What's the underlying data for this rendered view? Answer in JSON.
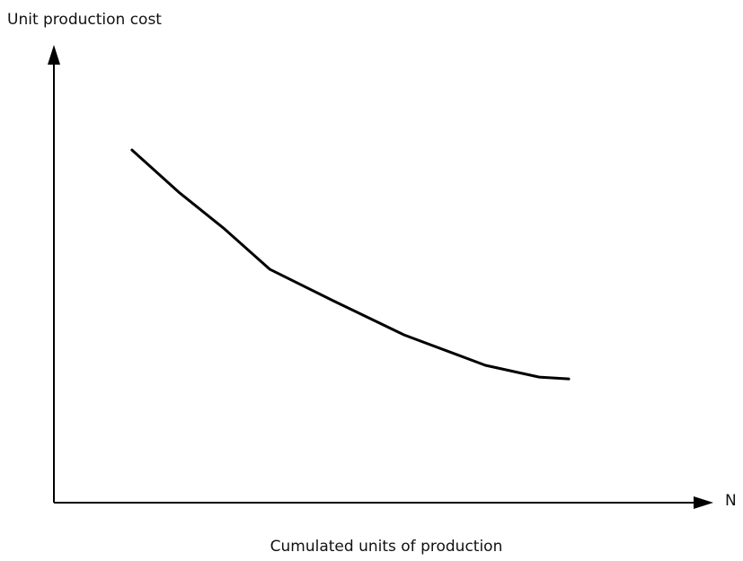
{
  "chart_data": {
    "type": "line",
    "ylabel": "Unit production cost",
    "xlabel": "Cumulated units of production",
    "xaxis_end_label": "N",
    "xlim": [
      0,
      100
    ],
    "ylim": [
      0,
      100
    ],
    "x": [
      11.9,
      19.2,
      26,
      32.9,
      42.5,
      53.4,
      65.8,
      74,
      78.5
    ],
    "series": [
      {
        "color": "#000000",
        "values": [
          77.8,
          68.3,
          60.4,
          51.5,
          44.6,
          37,
          30.3,
          27.7,
          27.3
        ]
      }
    ]
  }
}
